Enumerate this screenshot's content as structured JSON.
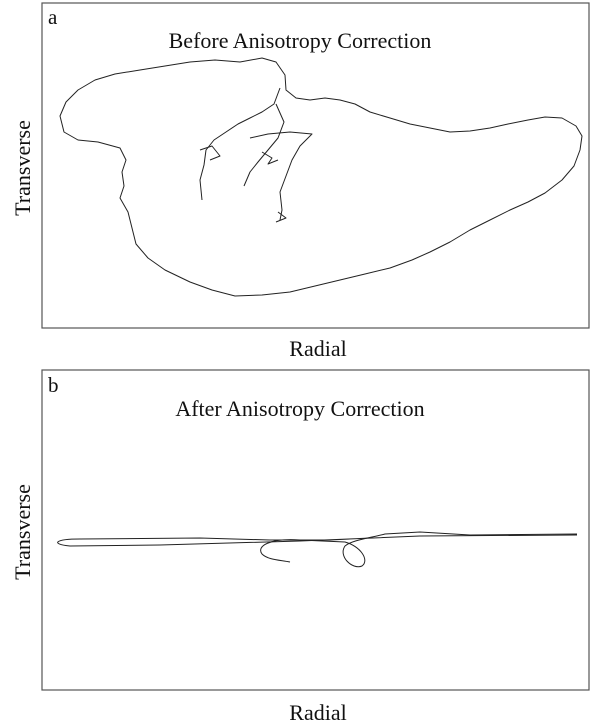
{
  "panels": [
    {
      "label": "a",
      "title": "Before Anisotropy Correction",
      "xlabel": "Radial",
      "ylabel": "Transverse"
    },
    {
      "label": "b",
      "title": "After Anisotropy Correction",
      "xlabel": "Radial",
      "ylabel": "Transverse"
    }
  ]
}
